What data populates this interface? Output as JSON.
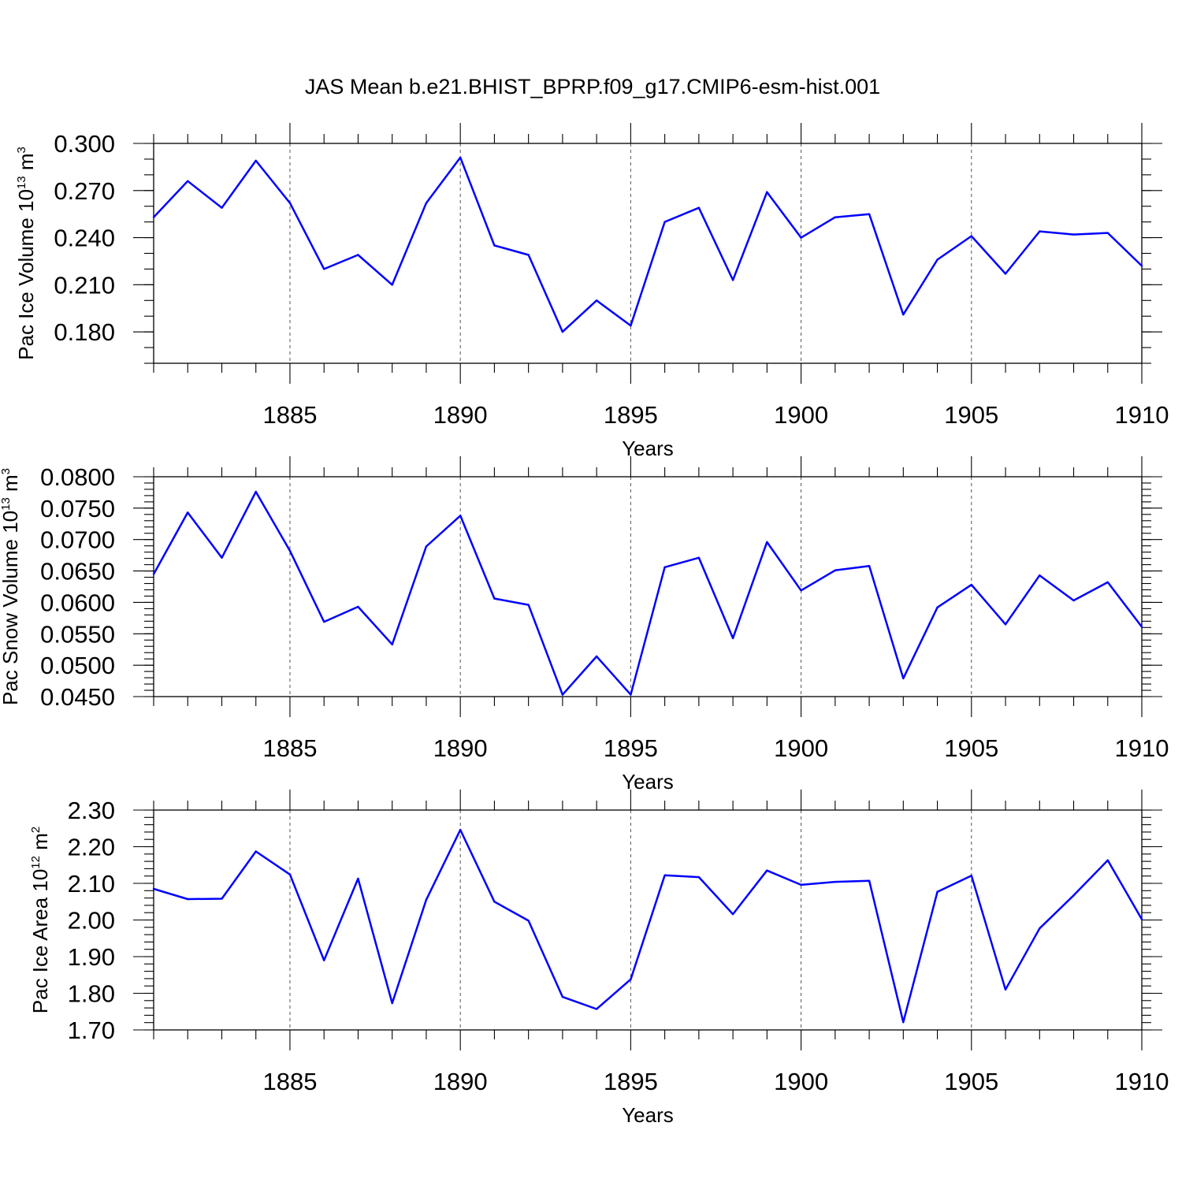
{
  "figure": {
    "title": "JAS Mean b.e21.BHIST_BPRP.f09_g17.CMIP6-esm-hist.001",
    "line_color": "#0000ff"
  },
  "chart_data": [
    {
      "type": "line",
      "name": "ice-volume",
      "ylabel": {
        "main": "Pac Ice Volume 10",
        "exp": "13",
        "unit": " m",
        "unit_exp": "3"
      },
      "xlabel": "Years",
      "xlim": [
        1881,
        1910
      ],
      "ylim": [
        0.16,
        0.3
      ],
      "yticks": [
        0.18,
        0.21,
        0.24,
        0.27,
        0.3
      ],
      "yticklabels": [
        "0.180",
        "0.210",
        "0.240",
        "0.270",
        "0.300"
      ],
      "ytick_minor_step": 0.01,
      "xticks": [
        1885,
        1890,
        1895,
        1900,
        1905,
        1910
      ],
      "x": [
        1881,
        1882,
        1883,
        1884,
        1885,
        1886,
        1887,
        1888,
        1889,
        1890,
        1891,
        1892,
        1893,
        1894,
        1895,
        1896,
        1897,
        1898,
        1899,
        1900,
        1901,
        1902,
        1903,
        1904,
        1905,
        1906,
        1907,
        1908,
        1909,
        1910
      ],
      "values": [
        0.253,
        0.276,
        0.259,
        0.289,
        0.262,
        0.22,
        0.229,
        0.21,
        0.262,
        0.291,
        0.235,
        0.229,
        0.18,
        0.2,
        0.184,
        0.25,
        0.259,
        0.213,
        0.269,
        0.24,
        0.253,
        0.255,
        0.191,
        0.226,
        0.241,
        0.217,
        0.244,
        0.242,
        0.243,
        0.222
      ]
    },
    {
      "type": "line",
      "name": "snow-volume",
      "ylabel": {
        "main": "Pac Snow Volume 10",
        "exp": "13",
        "unit": " m",
        "unit_exp": "3"
      },
      "xlabel": "Years",
      "xlim": [
        1881,
        1910
      ],
      "ylim": [
        0.045,
        0.08
      ],
      "yticks": [
        0.045,
        0.05,
        0.055,
        0.06,
        0.065,
        0.07,
        0.075,
        0.08
      ],
      "yticklabels": [
        "0.0450",
        "0.0500",
        "0.0550",
        "0.0600",
        "0.0650",
        "0.0700",
        "0.0750",
        "0.0800"
      ],
      "ytick_minor_step": 0.001,
      "xticks": [
        1885,
        1890,
        1895,
        1900,
        1905,
        1910
      ],
      "x": [
        1881,
        1882,
        1883,
        1884,
        1885,
        1886,
        1887,
        1888,
        1889,
        1890,
        1891,
        1892,
        1893,
        1894,
        1895,
        1896,
        1897,
        1898,
        1899,
        1900,
        1901,
        1902,
        1903,
        1904,
        1905,
        1906,
        1907,
        1908,
        1909,
        1910
      ],
      "values": [
        0.0645,
        0.0743,
        0.0671,
        0.0776,
        0.0682,
        0.0569,
        0.0593,
        0.0533,
        0.0689,
        0.0738,
        0.0606,
        0.0596,
        0.0453,
        0.0514,
        0.0453,
        0.0656,
        0.0671,
        0.0543,
        0.0696,
        0.0619,
        0.0651,
        0.0658,
        0.0479,
        0.0592,
        0.0628,
        0.0565,
        0.0643,
        0.0603,
        0.0632,
        0.0561
      ]
    },
    {
      "type": "line",
      "name": "ice-area",
      "ylabel": {
        "main": "Pac Ice Area 10",
        "exp": "12",
        "unit": " m",
        "unit_exp": "2"
      },
      "xlabel": "Years",
      "xlim": [
        1881,
        1910
      ],
      "ylim": [
        1.7,
        2.3
      ],
      "yticks": [
        1.7,
        1.8,
        1.9,
        2.0,
        2.1,
        2.2,
        2.3
      ],
      "yticklabels": [
        "1.70",
        "1.80",
        "1.90",
        "2.00",
        "2.10",
        "2.20",
        "2.30"
      ],
      "ytick_minor_step": 0.02,
      "xticks": [
        1885,
        1890,
        1895,
        1900,
        1905,
        1910
      ],
      "x": [
        1881,
        1882,
        1883,
        1884,
        1885,
        1886,
        1887,
        1888,
        1889,
        1890,
        1891,
        1892,
        1893,
        1894,
        1895,
        1896,
        1897,
        1898,
        1899,
        1900,
        1901,
        1902,
        1903,
        1904,
        1905,
        1906,
        1907,
        1908,
        1909,
        1910
      ],
      "values": [
        2.085,
        2.057,
        2.058,
        2.187,
        2.124,
        1.89,
        2.113,
        1.773,
        2.055,
        2.246,
        2.05,
        1.998,
        1.79,
        1.757,
        1.838,
        2.122,
        2.117,
        2.016,
        2.135,
        2.096,
        2.104,
        2.107,
        1.721,
        2.077,
        2.121,
        1.81,
        1.977,
        2.067,
        2.163,
        2.002
      ]
    }
  ]
}
